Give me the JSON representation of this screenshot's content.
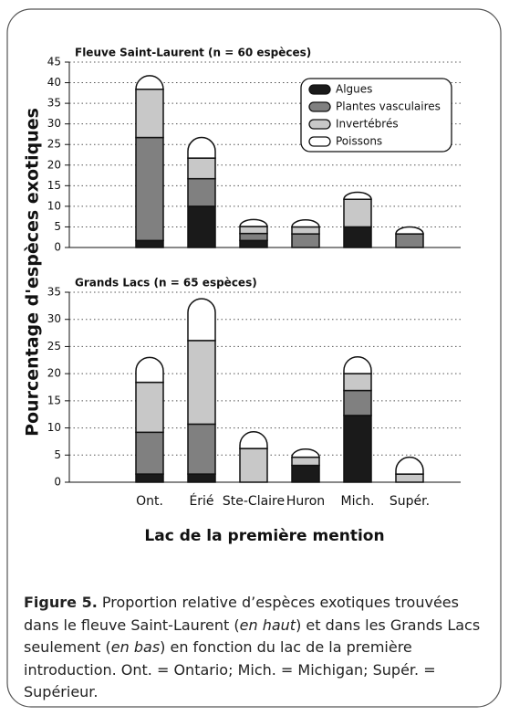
{
  "y_label": "Pourcentage d'espèces exotiques",
  "x_label": "Lac de la première mention",
  "caption": {
    "label": "Figure 5.",
    "runs": [
      "Proportion relative d’espèces exotiques trouvées dans le fleuve Saint-Laurent (",
      "en haut",
      ") et dans les Grands Lacs seulement (",
      "en bas",
      ") en fonction du lac de la première introduction. Ont. = Ontario; Mich. = Michigan; Supér. = Supérieur."
    ]
  },
  "chart_data": [
    {
      "type": "bar",
      "stacked": true,
      "title": "Fleuve Saint-Laurent (n = 60 espèces)",
      "ylim": [
        0,
        45
      ],
      "yticks": [
        0,
        5,
        10,
        15,
        20,
        25,
        30,
        35,
        40,
        45
      ],
      "grid": true,
      "legend": "upper right",
      "series": [
        {
          "name": "Algues",
          "color": "#1a1a1a",
          "values": [
            1.7,
            10,
            1.7,
            0,
            5,
            0
          ]
        },
        {
          "name": "Plantes vasculaires",
          "color": "#808080",
          "values": [
            25,
            6.7,
            1.7,
            3.3,
            0,
            3.3
          ]
        },
        {
          "name": "Invertébrés",
          "color": "#c8c8c8",
          "values": [
            11.7,
            5,
            1.7,
            1.7,
            6.7,
            0
          ]
        },
        {
          "name": "Poissons",
          "color": "#ffffff",
          "values": [
            3.3,
            5,
            1.7,
            1.7,
            1.7,
            1.7
          ]
        }
      ]
    },
    {
      "type": "bar",
      "stacked": true,
      "title": "Grands Lacs (n = 65 espèces)",
      "categories": [
        "Ont.",
        "Érié",
        "Ste-Claire",
        "Huron",
        "Mich.",
        "Supér."
      ],
      "ylim": [
        0,
        35
      ],
      "yticks": [
        0,
        5,
        10,
        15,
        20,
        25,
        30,
        35
      ],
      "grid": true,
      "series": [
        {
          "values": [
            1.5,
            1.5,
            0,
            3.1,
            12.3,
            0
          ]
        },
        {
          "values": [
            7.7,
            9.2,
            0,
            0,
            4.6,
            0
          ]
        },
        {
          "values": [
            9.2,
            15.4,
            6.2,
            1.5,
            3.1,
            1.5
          ]
        },
        {
          "values": [
            4.6,
            7.7,
            3.1,
            1.5,
            3.1,
            3.1
          ]
        }
      ]
    }
  ]
}
